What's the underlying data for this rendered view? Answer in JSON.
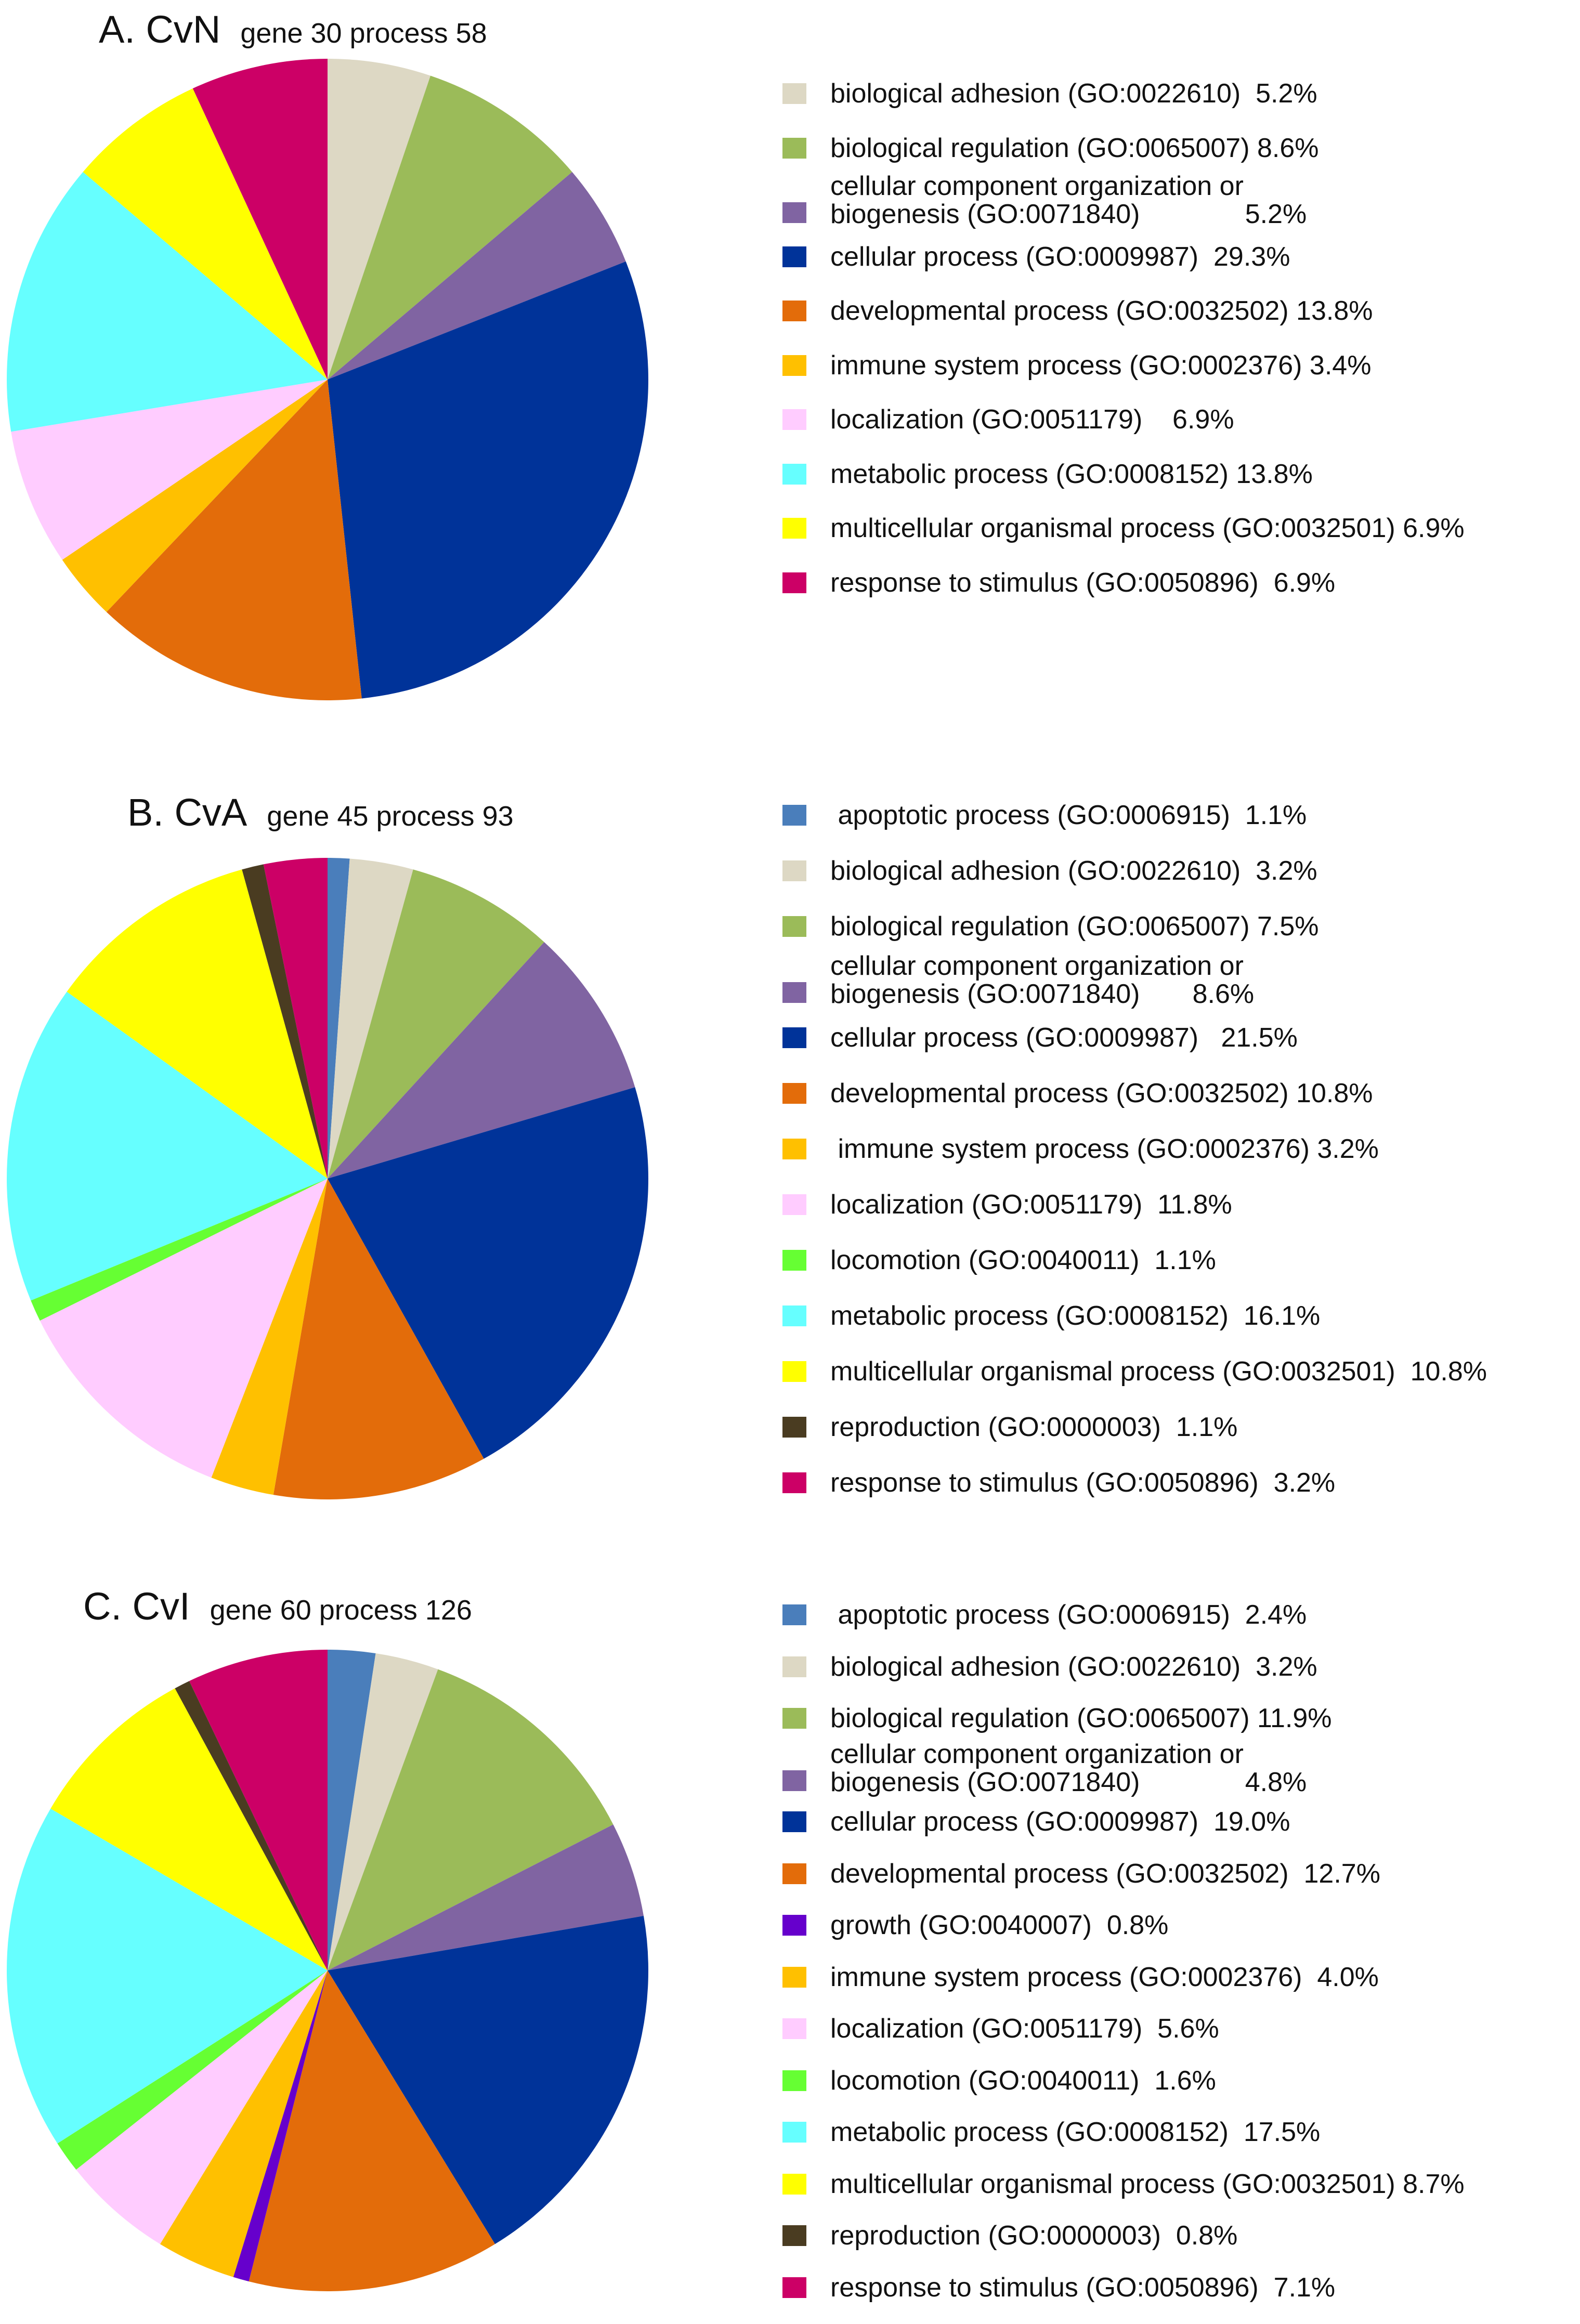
{
  "colors": {
    "apoptotic": "#4a7ebb",
    "adhesion": "#ddd8c4",
    "regulation": "#9bbb59",
    "organization": "#8064a2",
    "cellular": "#003399",
    "developmental": "#e36c0a",
    "growth": "#6600cc",
    "immune": "#ffc000",
    "localization": "#ffccff",
    "locomotion": "#66ff33",
    "metabolic": "#66ffff",
    "multicellular": "#ffff00",
    "reproduction": "#4a3c21",
    "response": "#cc0066"
  },
  "chart_data": [
    {
      "type": "pie",
      "title": "A. CvN",
      "subtitle": "gene 30 process 58",
      "slices": [
        {
          "key": "adhesion",
          "label": "biological adhesion (GO:0022610)  5.2%",
          "value": 5.2
        },
        {
          "key": "regulation",
          "label": "biological regulation (GO:0065007) 8.6%",
          "value": 8.6
        },
        {
          "key": "organization",
          "label": "cellular component organization or\nbiogenesis (GO:0071840)              5.2%",
          "value": 5.2
        },
        {
          "key": "cellular",
          "label": "cellular process (GO:0009987)  29.3%",
          "value": 29.3
        },
        {
          "key": "developmental",
          "label": "developmental process (GO:0032502) 13.8%",
          "value": 13.8
        },
        {
          "key": "immune",
          "label": "immune system process (GO:0002376) 3.4%",
          "value": 3.4
        },
        {
          "key": "localization",
          "label": "localization (GO:0051179)    6.9%",
          "value": 6.9
        },
        {
          "key": "metabolic",
          "label": "metabolic process (GO:0008152) 13.8%",
          "value": 13.8
        },
        {
          "key": "multicellular",
          "label": "multicellular organismal process (GO:0032501) 6.9%",
          "value": 6.9
        },
        {
          "key": "response",
          "label": "response to stimulus (GO:0050896)  6.9%",
          "value": 6.9
        }
      ]
    },
    {
      "type": "pie",
      "title": "B. CvA",
      "subtitle": "gene 45 process 93",
      "slices": [
        {
          "key": "apoptotic",
          "label": " apoptotic process (GO:0006915)  1.1%",
          "value": 1.1
        },
        {
          "key": "adhesion",
          "label": "biological adhesion (GO:0022610)  3.2%",
          "value": 3.2
        },
        {
          "key": "regulation",
          "label": "biological regulation (GO:0065007) 7.5%",
          "value": 7.5
        },
        {
          "key": "organization",
          "label": "cellular component organization or\nbiogenesis (GO:0071840)       8.6%",
          "value": 8.6
        },
        {
          "key": "cellular",
          "label": "cellular process (GO:0009987)   21.5%",
          "value": 21.5
        },
        {
          "key": "developmental",
          "label": "developmental process (GO:0032502) 10.8%",
          "value": 10.8
        },
        {
          "key": "immune",
          "label": " immune system process (GO:0002376) 3.2%",
          "value": 3.2
        },
        {
          "key": "localization",
          "label": "localization (GO:0051179)  11.8%",
          "value": 11.8
        },
        {
          "key": "locomotion",
          "label": "locomotion (GO:0040011)  1.1%",
          "value": 1.1
        },
        {
          "key": "metabolic",
          "label": "metabolic process (GO:0008152)  16.1%",
          "value": 16.1
        },
        {
          "key": "multicellular",
          "label": "multicellular organismal process (GO:0032501)  10.8%",
          "value": 10.8
        },
        {
          "key": "reproduction",
          "label": "reproduction (GO:0000003)  1.1%",
          "value": 1.1
        },
        {
          "key": "response",
          "label": "response to stimulus (GO:0050896)  3.2%",
          "value": 3.2
        }
      ]
    },
    {
      "type": "pie",
      "title": "C. CvI",
      "subtitle": "gene 60 process 126",
      "slices": [
        {
          "key": "apoptotic",
          "label": " apoptotic process (GO:0006915)  2.4%",
          "value": 2.4
        },
        {
          "key": "adhesion",
          "label": "biological adhesion (GO:0022610)  3.2%",
          "value": 3.2
        },
        {
          "key": "regulation",
          "label": "biological regulation (GO:0065007) 11.9%",
          "value": 11.9
        },
        {
          "key": "organization",
          "label": "cellular component organization or\nbiogenesis (GO:0071840)              4.8%",
          "value": 4.8
        },
        {
          "key": "cellular",
          "label": "cellular process (GO:0009987)  19.0%",
          "value": 19.0
        },
        {
          "key": "developmental",
          "label": "developmental process (GO:0032502)  12.7%",
          "value": 12.7
        },
        {
          "key": "growth",
          "label": "growth (GO:0040007)  0.8%",
          "value": 0.8
        },
        {
          "key": "immune",
          "label": "immune system process (GO:0002376)  4.0%",
          "value": 4.0
        },
        {
          "key": "localization",
          "label": "localization (GO:0051179)  5.6%",
          "value": 5.6
        },
        {
          "key": "locomotion",
          "label": "locomotion (GO:0040011)  1.6%",
          "value": 1.6
        },
        {
          "key": "metabolic",
          "label": "metabolic process (GO:0008152)  17.5%",
          "value": 17.5
        },
        {
          "key": "multicellular",
          "label": "multicellular organismal process (GO:0032501) 8.7%",
          "value": 8.7
        },
        {
          "key": "reproduction",
          "label": "reproduction (GO:0000003)  0.8%",
          "value": 0.8
        },
        {
          "key": "response",
          "label": "response to stimulus (GO:0050896)  7.1%",
          "value": 7.1
        }
      ]
    }
  ]
}
